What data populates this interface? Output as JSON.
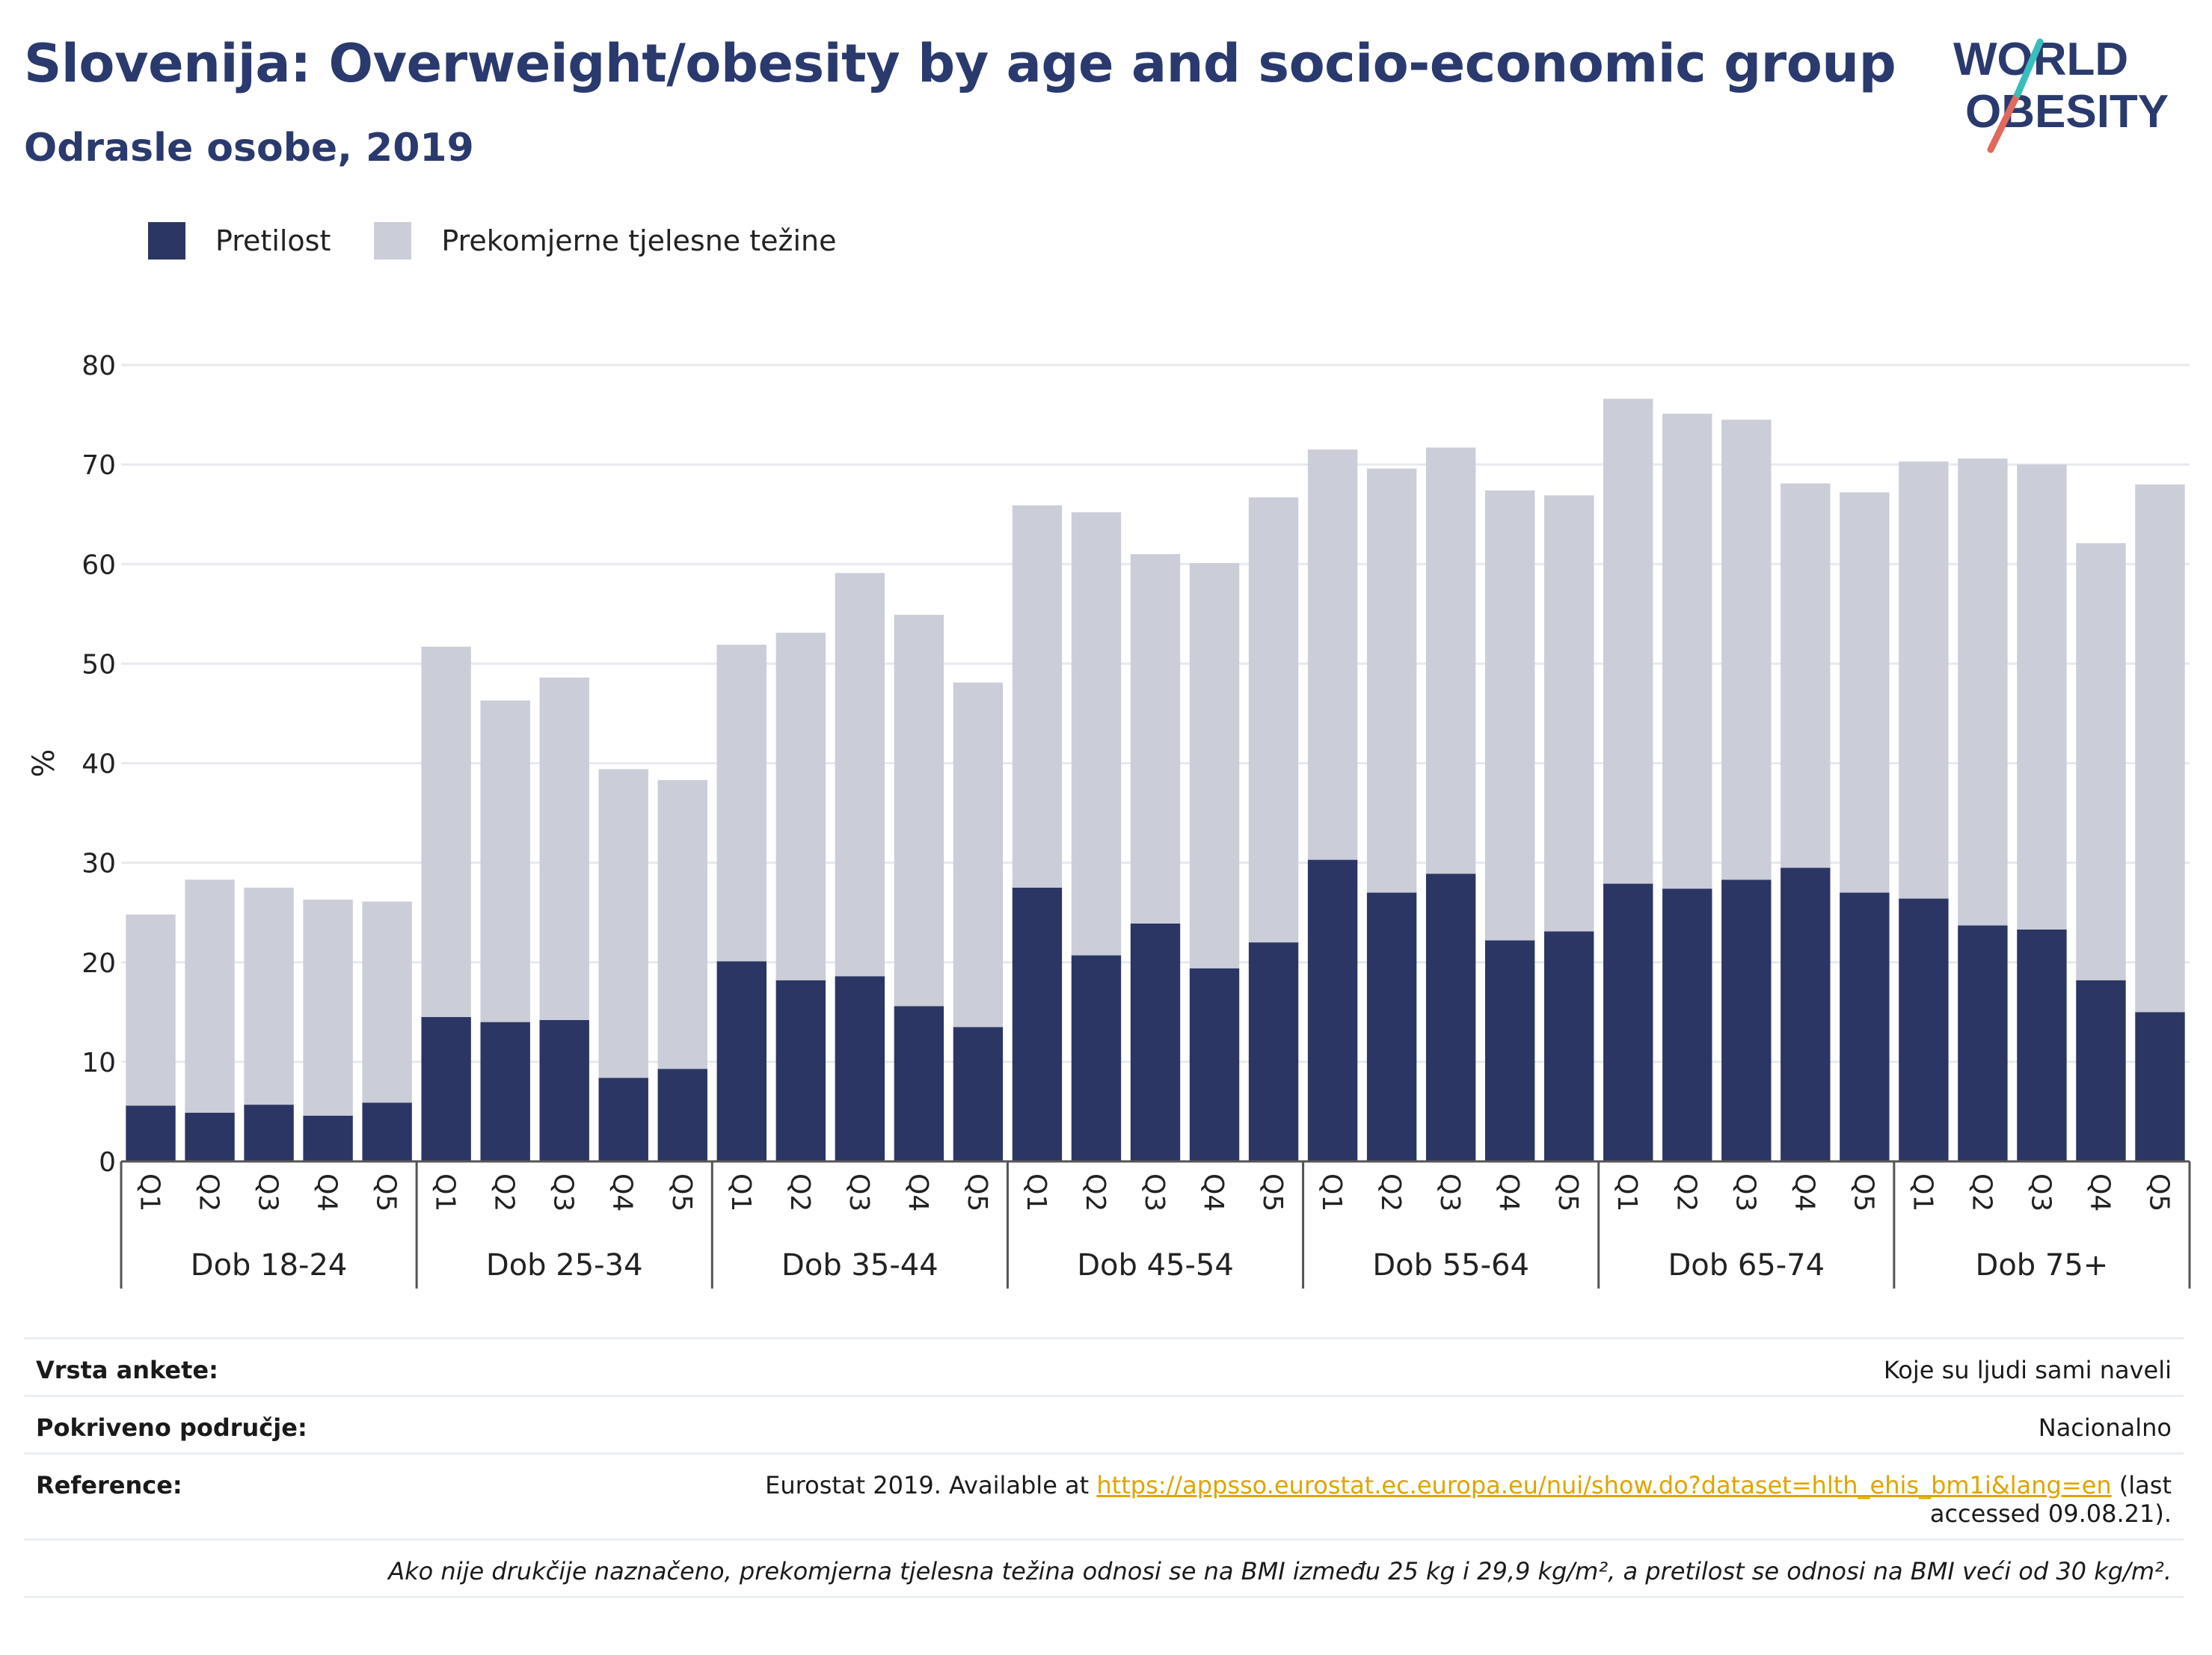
{
  "header": {
    "title": "Slovenija: Overweight/obesity by age and socio-economic group",
    "subtitle": "Odrasle osobe, 2019"
  },
  "logo": {
    "line1": "WORLD",
    "line2": "OBESITY"
  },
  "colors": {
    "obesity": "#2b3664",
    "overweight": "#cbcdd9",
    "accent_teal": "#3bbdbd",
    "accent_red": "#e06a5c",
    "brand": "#2a3a6e",
    "link": "#e0a400"
  },
  "legend": [
    {
      "label": "Pretilost",
      "color": "#2b3664"
    },
    {
      "label": "Prekomjerne tjelesne težine",
      "color": "#cbcdd9"
    }
  ],
  "chart_data": {
    "type": "bar",
    "stacked": true,
    "ylabel": "%",
    "ylim": [
      0,
      80
    ],
    "yticks": [
      0,
      10,
      20,
      30,
      40,
      50,
      60,
      70,
      80
    ],
    "grid": true,
    "legend_position": "top-left",
    "groups": [
      "Dob 18-24",
      "Dob 25-34",
      "Dob 35-44",
      "Dob 45-54",
      "Dob 55-64",
      "Dob 65-74",
      "Dob 75+"
    ],
    "subcategories": [
      "Q1",
      "Q2",
      "Q3",
      "Q4",
      "Q5"
    ],
    "series": [
      {
        "name": "Pretilost",
        "values": [
          5.6,
          4.9,
          5.7,
          4.6,
          5.9,
          14.5,
          14.0,
          14.2,
          8.4,
          9.3,
          20.1,
          18.2,
          18.6,
          15.6,
          13.5,
          27.5,
          20.7,
          23.9,
          19.4,
          22.0,
          30.3,
          27.0,
          28.9,
          22.2,
          23.1,
          27.9,
          27.4,
          28.3,
          29.5,
          27.0,
          26.4,
          23.7,
          23.3,
          18.2,
          15.0
        ]
      },
      {
        "name": "Prekomjerne tjelesne težine",
        "values": [
          19.2,
          23.4,
          21.8,
          21.7,
          20.2,
          37.2,
          32.3,
          34.4,
          31.0,
          29.0,
          31.8,
          34.9,
          40.5,
          39.3,
          34.6,
          38.4,
          44.5,
          37.1,
          40.7,
          44.7,
          41.2,
          42.6,
          42.8,
          45.2,
          43.8,
          48.7,
          47.7,
          46.2,
          38.6,
          40.2,
          43.9,
          46.9,
          46.7,
          43.9,
          53.0
        ]
      }
    ]
  },
  "footer": {
    "rows": [
      {
        "key": "Vrsta ankete:",
        "value": "Koje su ljudi sami naveli"
      },
      {
        "key": "Pokriveno područje:",
        "value": "Nacionalno"
      }
    ],
    "reference": {
      "key": "Reference:",
      "prefix": "Eurostat 2019. Available at ",
      "link": "https://appsso.eurostat.ec.europa.eu/nui/show.do?dataset=hlth_ehis_bm1i&lang=en",
      "suffix": " (last accessed 09.08.21)."
    },
    "note": "Ako nije drukčije naznačeno, prekomjerna tjelesna težina odnosi se na BMI između 25 kg i 29,9 kg/m², a pretilost se odnosi na BMI veći od 30 kg/m²."
  }
}
